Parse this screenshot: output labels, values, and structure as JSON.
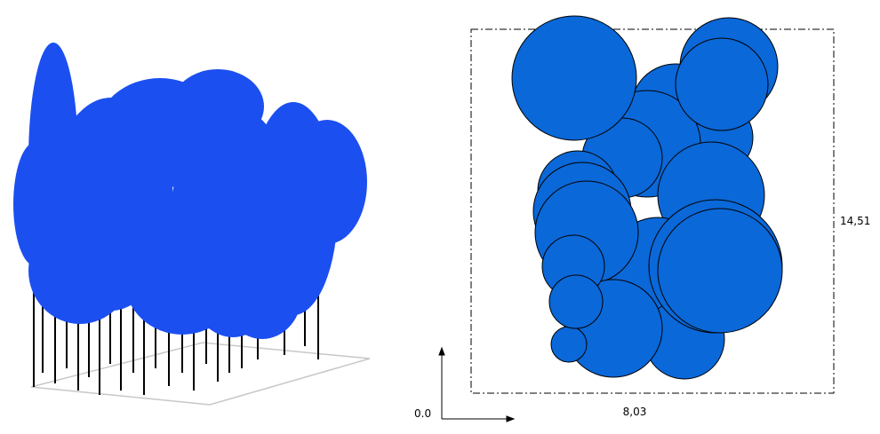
{
  "dimensions": {
    "height": "14,51",
    "width": "8,03",
    "origin": "0.0"
  }
}
